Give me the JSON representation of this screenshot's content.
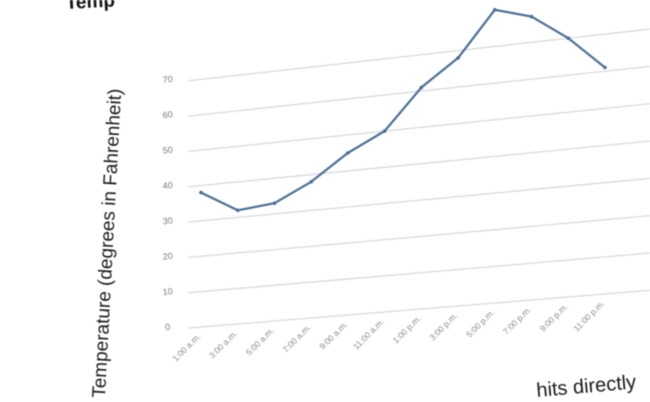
{
  "chart_data": {
    "type": "line",
    "title": "Temp",
    "ylabel": "Temperature (degrees in Fahrenheit)",
    "xlabel": "",
    "partial_text_fragment": "hits directly",
    "categories": [
      "1:00 a.m.",
      "3:00 a.m.",
      "5:00 a.m.",
      "7:00 a.m.",
      "9:00 a.m.",
      "11:00 a.m.",
      "1:00 p.m.",
      "3:00 p.m.",
      "5:00 p.m.",
      "7:00 p.m.",
      "9:00 p.m.",
      "11:00 p.m."
    ],
    "y_ticks": [
      0,
      10,
      20,
      30,
      40,
      50,
      60,
      70
    ],
    "series": [
      {
        "values": [
          38,
          32,
          33,
          38,
          45,
          50,
          61,
          68,
          80,
          77,
          70,
          61
        ]
      }
    ],
    "ylim": [
      0,
      80
    ],
    "grid": true,
    "colors": {
      "series": "#4b6f95",
      "grid": "#dcdcdc"
    }
  }
}
